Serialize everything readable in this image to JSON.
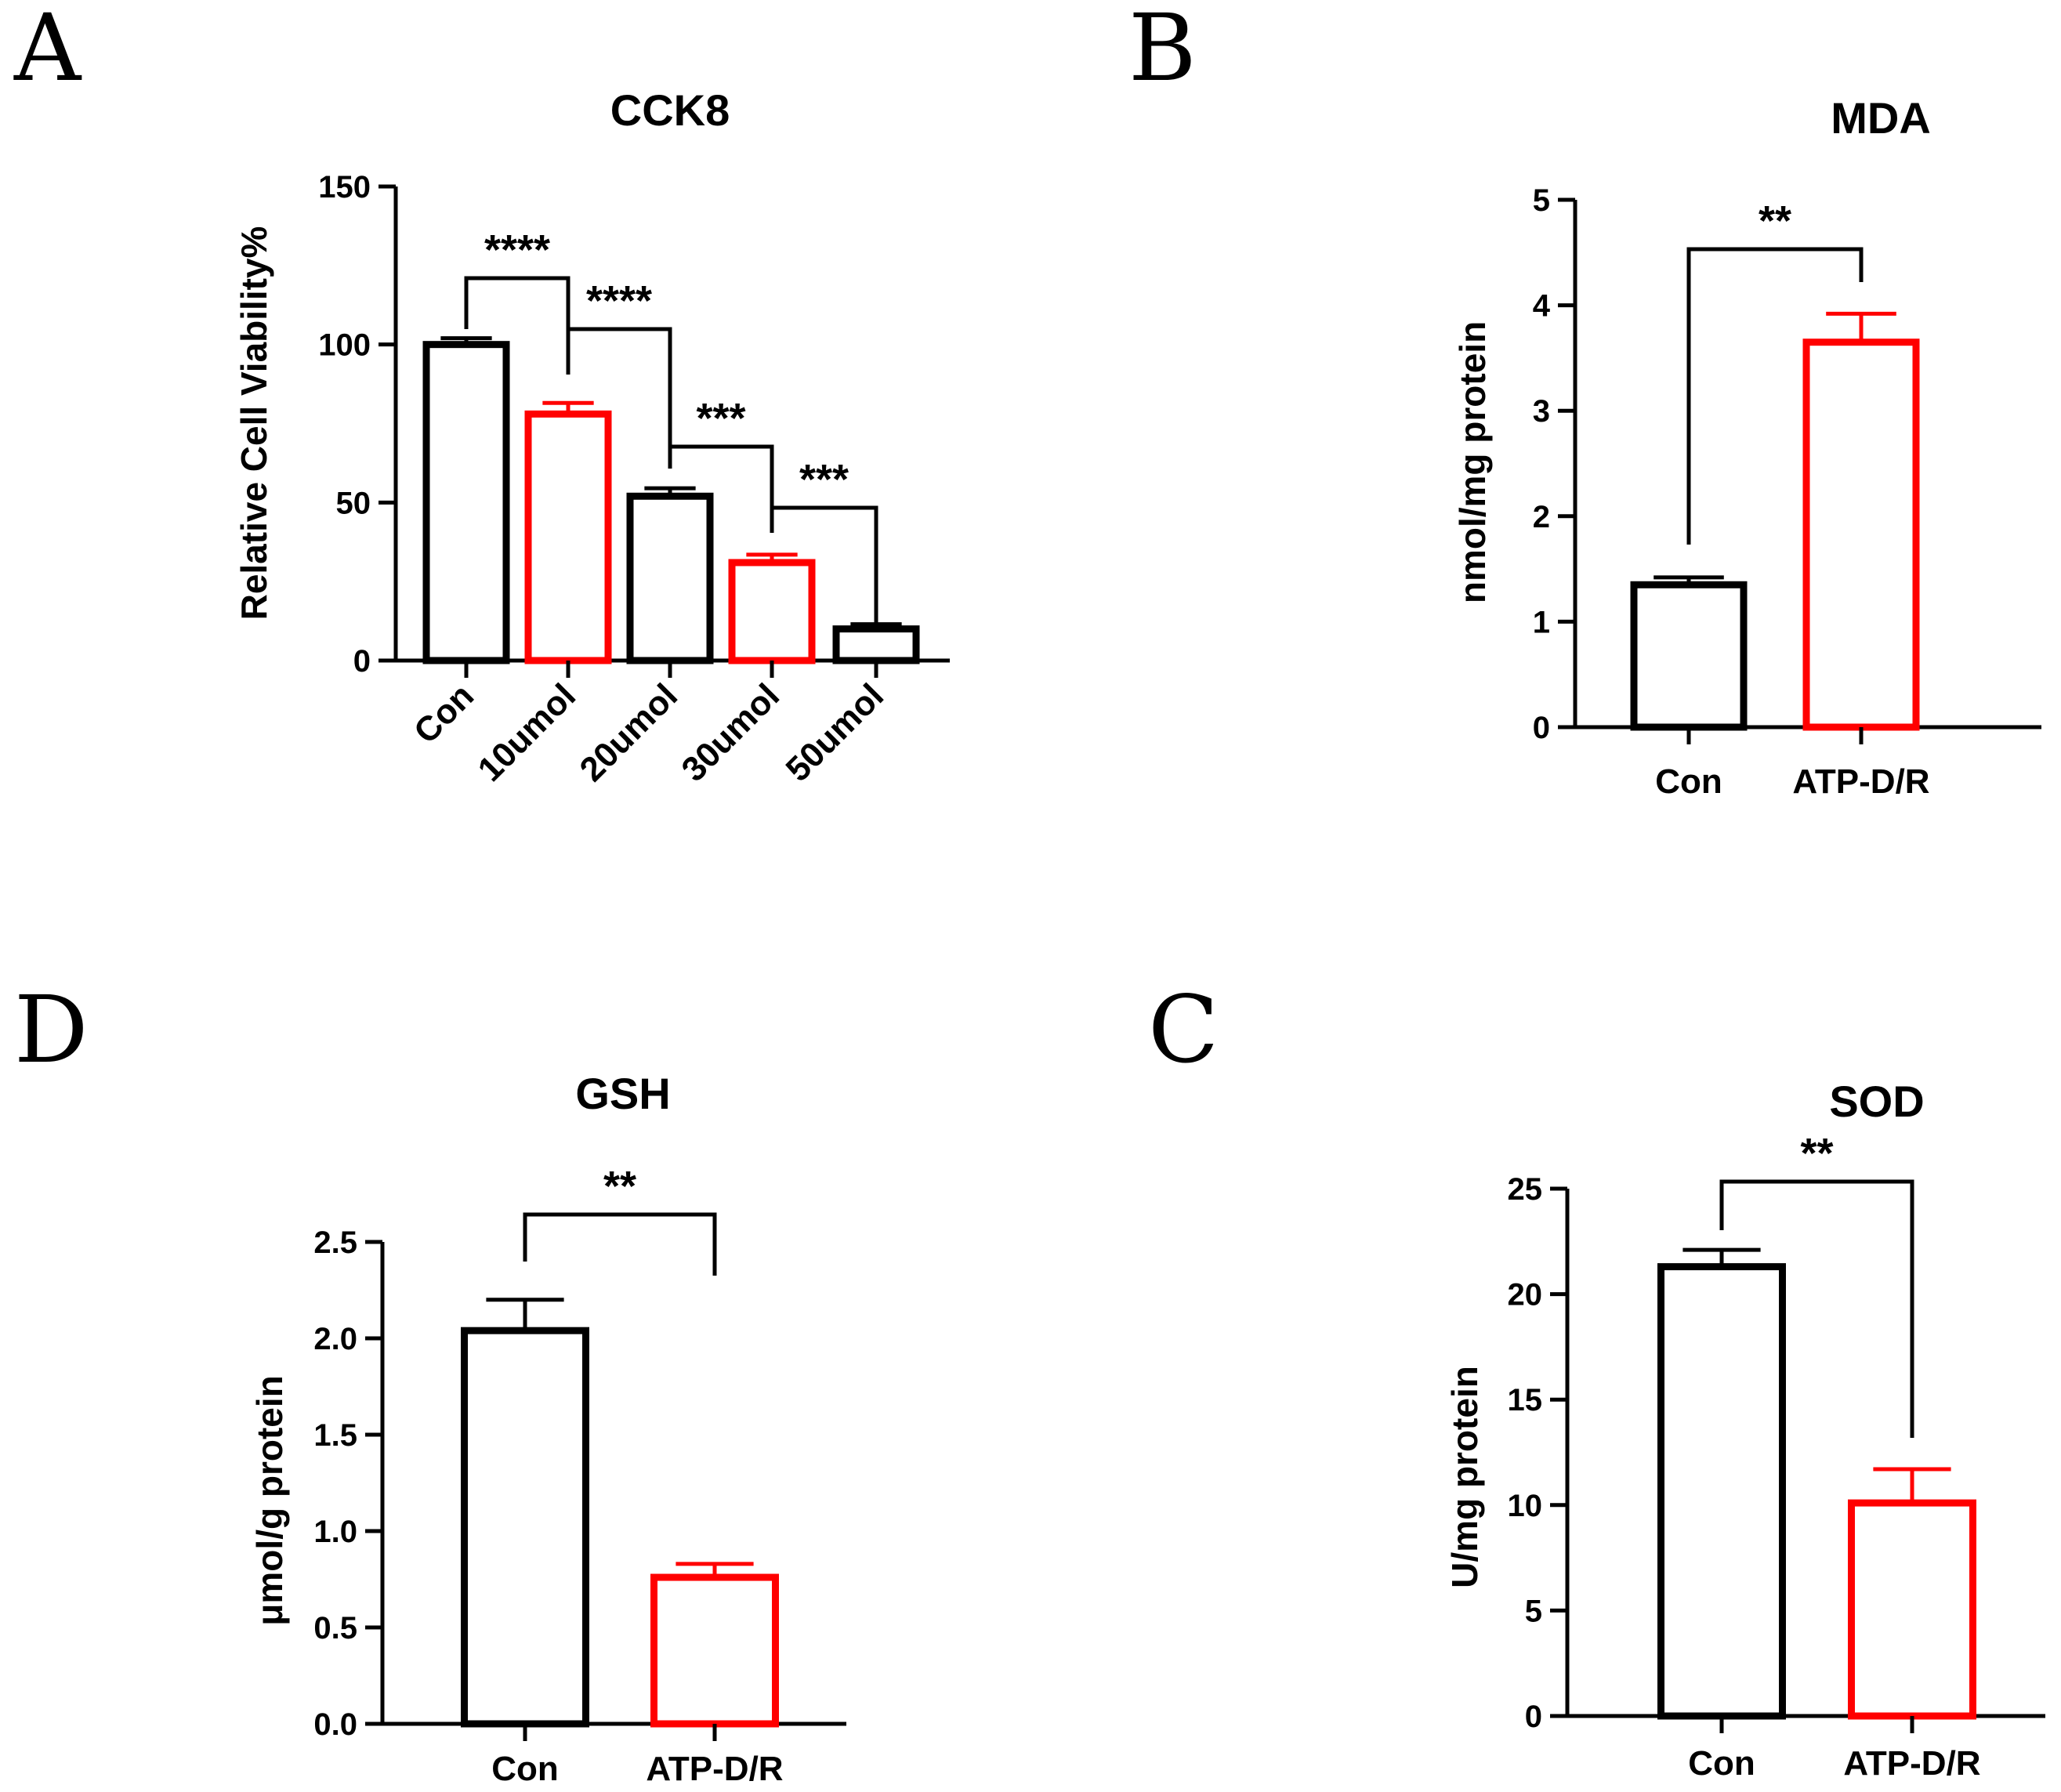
{
  "panels": [
    {
      "letter": "A"
    },
    {
      "letter": "B"
    },
    {
      "letter": "D"
    },
    {
      "letter": "C"
    }
  ],
  "chart_data": [
    {
      "panel": "A",
      "type": "bar",
      "title": "CCK8",
      "xlabel": "",
      "ylabel": "Relative Cell Viability%",
      "ylim": [
        0,
        150
      ],
      "yticks": [
        "0",
        "50",
        "100",
        "150"
      ],
      "categories": [
        "Con",
        "10umol",
        "20umol",
        "30umol",
        "50umol"
      ],
      "values": [
        100,
        78,
        52,
        31,
        10
      ],
      "errors": [
        2,
        3.5,
        2.5,
        2.5,
        1.5
      ],
      "colors": [
        "#000000",
        "#ff0000",
        "#000000",
        "#ff0000",
        "#000000"
      ],
      "significance": [
        {
          "from": 0,
          "to": 1,
          "label": "****"
        },
        {
          "from": 1,
          "to": 2,
          "label": "****"
        },
        {
          "from": 2,
          "to": 3,
          "label": "***"
        },
        {
          "from": 3,
          "to": 4,
          "label": "***"
        }
      ]
    },
    {
      "panel": "B",
      "type": "bar",
      "title": "MDA",
      "xlabel": "",
      "ylabel": "nmol/mg protein",
      "ylim": [
        0,
        5
      ],
      "yticks": [
        "0",
        "1",
        "2",
        "3",
        "4",
        "5"
      ],
      "categories": [
        "Con",
        "ATP-D/R"
      ],
      "values": [
        1.35,
        3.65
      ],
      "errors": [
        0.07,
        0.27
      ],
      "colors": [
        "#000000",
        "#ff0000"
      ],
      "significance": [
        {
          "from": 0,
          "to": 1,
          "label": "**"
        }
      ]
    },
    {
      "panel": "D",
      "type": "bar",
      "title": "GSH",
      "xlabel": "",
      "ylabel": "μmol/g protein",
      "ylim": [
        0,
        2.5
      ],
      "yticks": [
        "0.0",
        "0.5",
        "1.0",
        "1.5",
        "2.0",
        "2.5"
      ],
      "categories": [
        "Con",
        "ATP-D/R"
      ],
      "values": [
        2.04,
        0.76
      ],
      "errors": [
        0.16,
        0.07
      ],
      "colors": [
        "#000000",
        "#ff0000"
      ],
      "significance": [
        {
          "from": 0,
          "to": 1,
          "label": "**"
        }
      ]
    },
    {
      "panel": "C",
      "type": "bar",
      "title": "SOD",
      "xlabel": "",
      "ylabel": "U/mg protein",
      "ylim": [
        0,
        25
      ],
      "yticks": [
        "0",
        "5",
        "10",
        "15",
        "20",
        "25"
      ],
      "categories": [
        "Con",
        "ATP-D/R"
      ],
      "values": [
        21.3,
        10.1
      ],
      "errors": [
        0.8,
        1.6
      ],
      "colors": [
        "#000000",
        "#ff0000"
      ],
      "significance": [
        {
          "from": 0,
          "to": 1,
          "label": "**"
        }
      ]
    }
  ]
}
